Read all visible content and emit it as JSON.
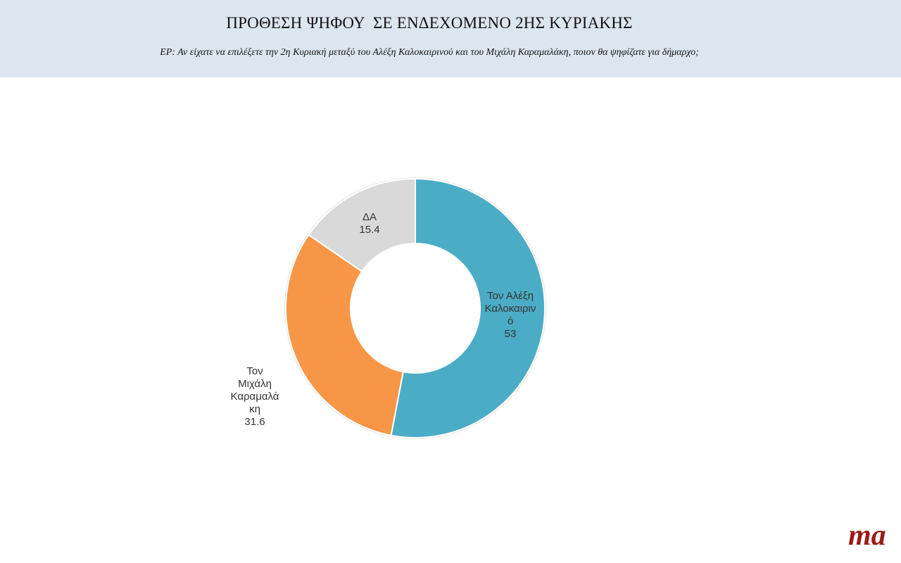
{
  "header": {
    "title": "ΠΡΟΘΕΣΗ ΨΗΦΟΥ  ΣΕ ΕΝΔΕΧΟΜΕΝΟ 2ΗΣ ΚΥΡΙΑΚΗΣ",
    "question": "ΕΡ: Αν είχατε να επιλέξετε την 2η Κυριακή μεταξύ του Αλέξη Καλοκαιρινού και του Μιχάλη Καραμαλάκη, ποιον θα ψηφίζατε για δήμαρχο;"
  },
  "chart_data": {
    "type": "pie",
    "donut": true,
    "title": "",
    "series": [
      {
        "categories": [
          "Τον Αλέξη Καλοκαιρινό",
          "Τον Μιχάλη Καραμαλάκη",
          "ΔΑ"
        ],
        "values": [
          53,
          31.6,
          15.4
        ],
        "label_lines": [
          [
            "Τον Αλέξη",
            "Καλοκαιριν",
            "ό",
            "53"
          ],
          [
            "Τον",
            "Μιχάλη",
            "Καραμαλά",
            "κη",
            "31.6"
          ],
          [
            "ΔΑ",
            "15.4"
          ]
        ],
        "colors": [
          "#4bacc6",
          "#f79646",
          "#d9d9d9"
        ]
      }
    ]
  },
  "brand": {
    "logo_text": "ma"
  }
}
